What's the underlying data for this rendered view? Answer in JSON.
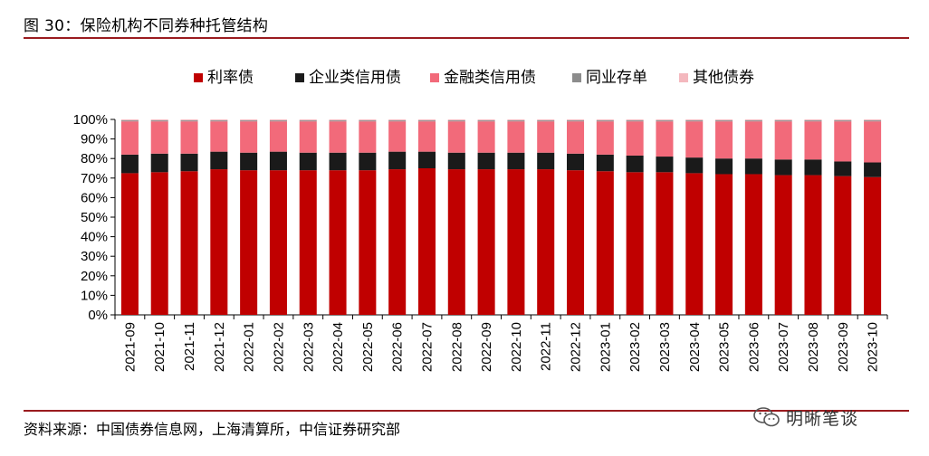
{
  "figure": {
    "title": "图 30：保险机构不同券种托管结构",
    "source": "资料来源：中国债券信息网，上海清算所，中信证券研究部",
    "brand": "明晰笔谈"
  },
  "colors": {
    "rule": "#9a1b1f",
    "series": [
      "#c00000",
      "#1a1a1a",
      "#f26a7a",
      "#8c8c8c",
      "#f4b8be"
    ]
  },
  "chart_data": {
    "type": "bar",
    "stacked": true,
    "categories": [
      "2021-09",
      "2021-10",
      "2021-11",
      "2021-12",
      "2022-01",
      "2022-02",
      "2022-03",
      "2022-04",
      "2022-05",
      "2022-06",
      "2022-07",
      "2022-08",
      "2022-09",
      "2022-10",
      "2022-11",
      "2022-12",
      "2023-01",
      "2023-02",
      "2023-03",
      "2023-04",
      "2023-05",
      "2023-06",
      "2023-07",
      "2023-08",
      "2023-09",
      "2023-10"
    ],
    "series": [
      {
        "name": "利率债",
        "values": [
          72.5,
          73.0,
          73.5,
          74.5,
          74.0,
          74.0,
          74.0,
          74.0,
          74.0,
          74.5,
          75.0,
          74.5,
          74.5,
          74.5,
          74.5,
          74.0,
          73.5,
          73.0,
          73.0,
          72.5,
          72.0,
          72.0,
          71.5,
          71.5,
          71.0,
          70.5
        ]
      },
      {
        "name": "企业类信用债",
        "values": [
          9.5,
          9.5,
          9.0,
          9.0,
          9.0,
          9.5,
          9.0,
          9.0,
          9.0,
          9.0,
          8.5,
          8.5,
          8.5,
          8.5,
          8.5,
          8.5,
          8.5,
          8.5,
          8.0,
          8.0,
          8.0,
          8.0,
          8.0,
          8.0,
          7.5,
          7.5
        ]
      },
      {
        "name": "金融类信用债",
        "values": [
          17.0,
          16.5,
          16.5,
          15.5,
          16.0,
          15.5,
          16.0,
          16.0,
          16.0,
          15.5,
          15.5,
          16.0,
          16.0,
          16.0,
          16.0,
          16.5,
          17.0,
          17.5,
          18.0,
          18.5,
          19.0,
          19.0,
          19.5,
          19.5,
          20.5,
          21.0
        ]
      },
      {
        "name": "同业存单",
        "values": [
          0.5,
          0.5,
          0.5,
          0.5,
          0.5,
          0.5,
          0.5,
          0.5,
          0.5,
          0.5,
          0.5,
          0.5,
          0.5,
          0.5,
          0.5,
          0.5,
          0.5,
          0.5,
          0.5,
          0.5,
          0.5,
          0.5,
          0.5,
          0.5,
          0.5,
          0.5
        ]
      },
      {
        "name": "其他债券",
        "values": [
          0.5,
          0.5,
          0.5,
          0.5,
          0.5,
          0.5,
          0.5,
          0.5,
          0.5,
          0.5,
          0.5,
          0.5,
          0.5,
          0.5,
          0.5,
          0.5,
          0.5,
          0.5,
          0.5,
          0.5,
          0.5,
          0.5,
          0.5,
          0.5,
          0.5,
          0.5
        ]
      }
    ],
    "yticks": [
      "0%",
      "10%",
      "20%",
      "30%",
      "40%",
      "50%",
      "60%",
      "70%",
      "80%",
      "90%",
      "100%"
    ],
    "ylim": [
      0,
      100
    ],
    "legend_position": "top",
    "grid": false
  }
}
